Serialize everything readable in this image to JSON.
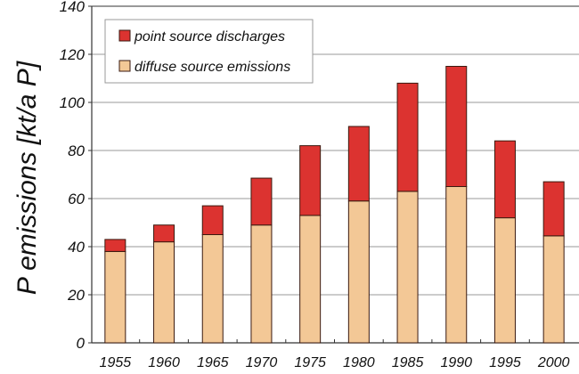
{
  "chart_data": {
    "type": "bar",
    "stacked": true,
    "title": "",
    "xlabel": "",
    "ylabel": "P emissions [kt/a P]",
    "ylim": [
      0,
      140
    ],
    "yticks": [
      0,
      20,
      40,
      60,
      80,
      100,
      120,
      140
    ],
    "grid": true,
    "legend_position": "top-left",
    "categories": [
      "1955",
      "1960",
      "1965",
      "1970",
      "1975",
      "1980",
      "1985",
      "1990",
      "1995",
      "2000"
    ],
    "series": [
      {
        "name": "diffuse source emissions",
        "color": "#f3c896",
        "values": [
          38,
          42,
          45,
          49,
          53,
          59,
          63,
          65,
          52,
          44.5
        ]
      },
      {
        "name": "point source discharges",
        "color": "#dc3330",
        "values": [
          5,
          7,
          12,
          19.5,
          29,
          31,
          45,
          50,
          32,
          22.5
        ]
      }
    ]
  }
}
